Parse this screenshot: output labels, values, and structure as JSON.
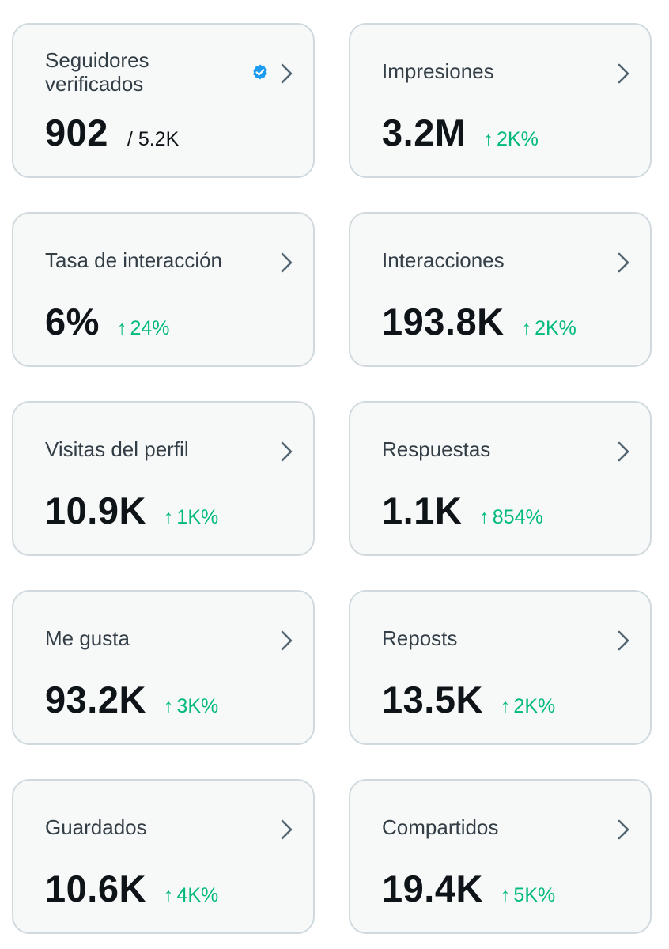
{
  "colors": {
    "card_bg": "#f7f9f9",
    "card_border": "#cfd9de",
    "title": "#333e46",
    "value": "#0f1419",
    "positive": "#00ba7c",
    "verified": "#1d9bf0",
    "chevron": "#536471"
  },
  "icons": {
    "chevron": "chevron-right-icon",
    "verified": "verified-badge-icon",
    "trend": "arrow-up-icon"
  },
  "cards": [
    {
      "title_line1": "Seguidores",
      "title_line2": "verificados",
      "value": "902",
      "sub": "/ 5.2K"
    },
    {
      "title": "Impresiones",
      "value": "3.2M",
      "change": "2K%"
    },
    {
      "title": "Tasa de interacción",
      "value": "6%",
      "change": "24%"
    },
    {
      "title": "Interacciones",
      "value": "193.8K",
      "change": "2K%"
    },
    {
      "title": "Visitas del perfil",
      "value": "10.9K",
      "change": "1K%"
    },
    {
      "title": "Respuestas",
      "value": "1.1K",
      "change": "854%"
    },
    {
      "title": "Me gusta",
      "value": "93.2K",
      "change": "3K%"
    },
    {
      "title": "Reposts",
      "value": "13.5K",
      "change": "2K%"
    },
    {
      "title": "Guardados",
      "value": "10.6K",
      "change": "4K%"
    },
    {
      "title": "Compartidos",
      "value": "19.4K",
      "change": "5K%"
    }
  ]
}
